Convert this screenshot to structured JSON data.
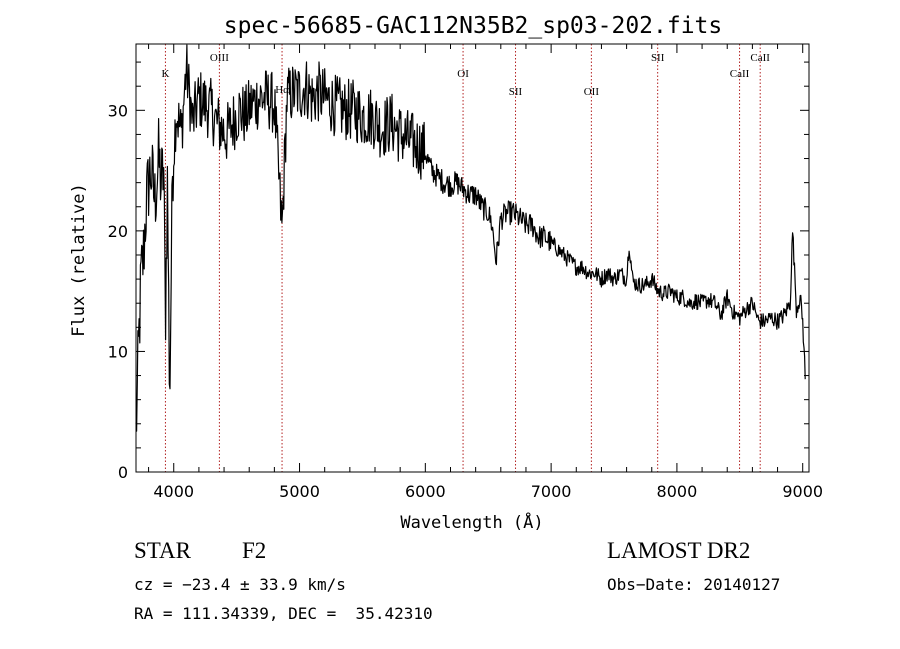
{
  "chart_data": {
    "type": "line",
    "title": "spec-56685-GAC112N35B2_sp03-202.fits",
    "xlabel": "Wavelength (Å)",
    "ylabel": "Flux (relative)",
    "xlim": [
      3700,
      9050
    ],
    "ylim": [
      0,
      35.5
    ],
    "xticks": [
      4000,
      5000,
      6000,
      7000,
      8000,
      9000
    ],
    "yticks": [
      0,
      10,
      20,
      30
    ],
    "lines": [
      {
        "label": "K",
        "wavelength": 3934
      },
      {
        "label": "OIII",
        "wavelength": 4363
      },
      {
        "label": "Hα",
        "wavelength": 4861
      },
      {
        "label": "OI",
        "wavelength": 6300
      },
      {
        "label": "SII",
        "wavelength": 6717
      },
      {
        "label": "OII",
        "wavelength": 7320
      },
      {
        "label": "SII",
        "wavelength": 7847
      },
      {
        "label": "CaII",
        "wavelength": 8498
      },
      {
        "label": "CaII",
        "wavelength": 8662
      }
    ],
    "series": [
      {
        "x": [
          3700,
          3720,
          3740,
          3760,
          3780,
          3800,
          3820,
          3850,
          3880,
          3900,
          3920,
          3934,
          3950,
          3968,
          3990,
          4020,
          4060,
          4100,
          4150,
          4200,
          4250,
          4300,
          4340,
          4380,
          4420,
          4470,
          4520,
          4570,
          4620,
          4680,
          4740,
          4800,
          4861,
          4900,
          4950,
          5000,
          5050,
          5100,
          5150,
          5200,
          5270,
          5350,
          5430,
          5500,
          5580,
          5650,
          5730,
          5800,
          5870,
          5950,
          6000,
          6050,
          6100,
          6150,
          6200,
          6250,
          6300,
          6350,
          6400,
          6450,
          6500,
          6530,
          6563,
          6600,
          6650,
          6700,
          6750,
          6800,
          6850,
          6900,
          6950,
          7000,
          7050,
          7100,
          7150,
          7200,
          7250,
          7300,
          7350,
          7400,
          7450,
          7500,
          7550,
          7600,
          7620,
          7650,
          7700,
          7750,
          7800,
          7850,
          7900,
          7950,
          8000,
          8050,
          8100,
          8150,
          8200,
          8250,
          8300,
          8350,
          8400,
          8450,
          8500,
          8550,
          8600,
          8650,
          8700,
          8750,
          8800,
          8850,
          8900,
          8920,
          8950,
          8980,
          9000,
          9020
        ],
        "y": [
          3.0,
          10.0,
          16.0,
          18.0,
          22.0,
          24.0,
          25.0,
          22.5,
          26.0,
          24.0,
          25.0,
          13.0,
          24.0,
          6.0,
          25.0,
          30.0,
          28.0,
          33.5,
          29.0,
          31.0,
          30.5,
          30.0,
          29.0,
          28.5,
          28.0,
          29.0,
          30.0,
          29.5,
          30.5,
          31.0,
          31.0,
          30.5,
          20.0,
          31.0,
          31.5,
          31.5,
          32.0,
          31.0,
          31.5,
          31.0,
          30.5,
          30.0,
          30.0,
          29.5,
          29.5,
          28.5,
          29.0,
          28.0,
          27.5,
          27.0,
          26.5,
          25.0,
          24.5,
          24.0,
          23.8,
          24.0,
          23.5,
          23.0,
          23.0,
          22.0,
          21.5,
          20.5,
          17.5,
          21.0,
          21.5,
          21.5,
          21.0,
          20.5,
          20.5,
          19.5,
          19.5,
          19.0,
          18.5,
          18.0,
          17.5,
          17.0,
          17.0,
          16.5,
          16.5,
          16.0,
          16.5,
          16.0,
          16.5,
          16.0,
          19.0,
          15.8,
          15.5,
          15.5,
          16.0,
          15.0,
          14.8,
          15.0,
          14.5,
          14.5,
          14.0,
          14.2,
          14.0,
          14.3,
          14.0,
          13.0,
          14.5,
          13.2,
          12.8,
          13.5,
          14.0,
          12.5,
          12.5,
          12.8,
          12.5,
          13.0,
          14.0,
          20.0,
          13.5,
          14.5,
          12.5,
          8.0
        ]
      }
    ]
  },
  "info": {
    "object_class": "STAR",
    "subclass": "F2",
    "survey": "LAMOST DR2",
    "redshift": "cz = −23.4 ± 33.9 km/s",
    "obs_date": "Obs−Date: 20140127",
    "coords": "RA = 111.34339, DEC =  35.42310"
  }
}
